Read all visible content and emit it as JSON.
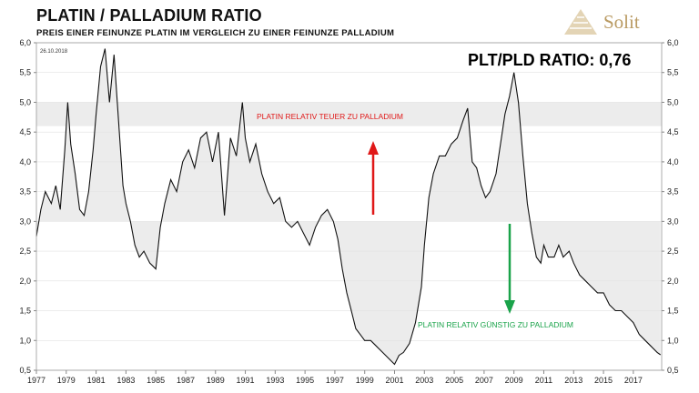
{
  "header": {
    "title": "PLATIN / PALLADIUM RATIO",
    "subtitle": "PREIS EINER FEINUNZE PLATIN IM VERGLEICH ZU EINER FEINUNZE PALLADIUM",
    "logo_text": "Solit"
  },
  "colors": {
    "line": "#111111",
    "band": "#ececec",
    "fill": "#ececec",
    "up_arrow": "#e01818",
    "down_arrow": "#1aa34a",
    "logo": "#b99a62"
  },
  "chart_data": {
    "type": "line",
    "title": "PLATIN / PALLADIUM RATIO",
    "date_label": "26.10.2018",
    "ratio_label": "PLT/PLD RATIO: 0,76",
    "ylim": [
      0.5,
      6.0
    ],
    "xlim": [
      1977.0,
      2018.9
    ],
    "y_ticks": [
      "0,5",
      "1,0",
      "1,5",
      "2,0",
      "2,5",
      "3,0",
      "3,5",
      "4,0",
      "4,5",
      "5,0",
      "5,5",
      "6,0"
    ],
    "x_ticks": [
      "1977",
      "1979",
      "1981",
      "1983",
      "1985",
      "1987",
      "1989",
      "1991",
      "1993",
      "1995",
      "1997",
      "1999",
      "2001",
      "2003",
      "2005",
      "2007",
      "2009",
      "2011",
      "2013",
      "2015",
      "2017"
    ],
    "band_high": [
      4.6,
      5.0
    ],
    "reference_level": 3.0,
    "annotation_high": "PLATIN RELATIV TEUER ZU PALLADIUM",
    "annotation_low": "PLATIN RELATIV GÜNSTIG ZU PALLADIUM",
    "series": [
      {
        "x": [
          1977.0,
          1977.3,
          1977.6,
          1978.0,
          1978.3,
          1978.6,
          1978.9,
          1979.1,
          1979.3,
          1979.6,
          1979.9,
          1980.2,
          1980.5,
          1980.8,
          1981.0,
          1981.3,
          1981.6,
          1981.9,
          1982.2,
          1982.5,
          1982.8,
          1983.0,
          1983.3,
          1983.6,
          1983.9,
          1984.2,
          1984.6,
          1985.0,
          1985.3,
          1985.6,
          1986.0,
          1986.4,
          1986.8,
          1987.2,
          1987.6,
          1988.0,
          1988.4,
          1988.8,
          1989.2,
          1989.6,
          1990.0,
          1990.4,
          1990.8,
          1991.0,
          1991.3,
          1991.7,
          1992.1,
          1992.5,
          1992.9,
          1993.3,
          1993.7,
          1994.1,
          1994.5,
          1994.9,
          1995.3,
          1995.7,
          1996.1,
          1996.5,
          1996.9,
          1997.2,
          1997.5,
          1997.8,
          1998.1,
          1998.4,
          1998.7,
          1999.0,
          1999.4,
          1999.8,
          2000.2,
          2000.6,
          2001.0,
          2001.3,
          2001.6,
          2002.0,
          2002.4,
          2002.8,
          2003.0,
          2003.3,
          2003.6,
          2004.0,
          2004.4,
          2004.8,
          2005.2,
          2005.6,
          2005.9,
          2006.2,
          2006.5,
          2006.8,
          2007.1,
          2007.4,
          2007.8,
          2008.1,
          2008.4,
          2008.7,
          2009.0,
          2009.3,
          2009.6,
          2009.9,
          2010.2,
          2010.5,
          2010.8,
          2011.0,
          2011.3,
          2011.7,
          2012.0,
          2012.3,
          2012.7,
          2013.0,
          2013.4,
          2013.8,
          2014.2,
          2014.6,
          2015.0,
          2015.4,
          2015.8,
          2016.2,
          2016.6,
          2017.0,
          2017.4,
          2017.8,
          2018.2,
          2018.6,
          2018.82
        ],
        "y": [
          2.75,
          3.2,
          3.5,
          3.3,
          3.6,
          3.2,
          4.2,
          5.0,
          4.3,
          3.8,
          3.2,
          3.1,
          3.5,
          4.2,
          4.8,
          5.6,
          5.9,
          5.0,
          5.8,
          4.7,
          3.6,
          3.3,
          3.0,
          2.6,
          2.4,
          2.5,
          2.3,
          2.2,
          2.9,
          3.3,
          3.7,
          3.5,
          4.0,
          4.2,
          3.9,
          4.4,
          4.5,
          4.0,
          4.5,
          3.1,
          4.4,
          4.1,
          5.0,
          4.4,
          4.0,
          4.3,
          3.8,
          3.5,
          3.3,
          3.4,
          3.0,
          2.9,
          3.0,
          2.8,
          2.6,
          2.9,
          3.1,
          3.2,
          3.0,
          2.7,
          2.2,
          1.8,
          1.5,
          1.2,
          1.1,
          1.0,
          1.0,
          0.9,
          0.8,
          0.7,
          0.6,
          0.75,
          0.8,
          0.95,
          1.3,
          1.9,
          2.6,
          3.4,
          3.8,
          4.1,
          4.1,
          4.3,
          4.4,
          4.7,
          4.9,
          4.0,
          3.9,
          3.6,
          3.4,
          3.5,
          3.8,
          4.3,
          4.8,
          5.1,
          5.5,
          5.0,
          4.1,
          3.3,
          2.8,
          2.4,
          2.3,
          2.6,
          2.4,
          2.4,
          2.6,
          2.4,
          2.5,
          2.3,
          2.1,
          2.0,
          1.9,
          1.8,
          1.8,
          1.6,
          1.5,
          1.5,
          1.4,
          1.3,
          1.1,
          1.0,
          0.9,
          0.8,
          0.76
        ]
      }
    ]
  }
}
